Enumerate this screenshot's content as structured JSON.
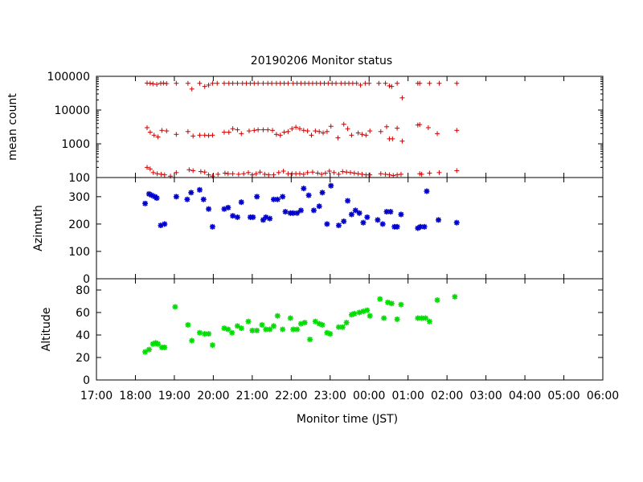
{
  "chart_data": {
    "title": "20190206 Monitor status",
    "xlabel": "Monitor time (JST)",
    "x_tick_labels": [
      "17:00",
      "18:00",
      "19:00",
      "20:00",
      "21:00",
      "22:00",
      "23:00",
      "00:00",
      "01:00",
      "02:00",
      "03:00",
      "04:00",
      "05:00",
      "06:00"
    ],
    "x_range_hours": [
      17,
      30
    ],
    "panels": [
      {
        "name": "mean-count",
        "type": "scatter",
        "ylabel": "mean count",
        "yscale": "log",
        "ylim": [
          100,
          100000
        ],
        "y_tick_labels": [
          "100",
          "1000",
          "10000",
          "100000"
        ],
        "y_tick_values": [
          100,
          1000,
          10000,
          100000
        ],
        "color": "#cc0000",
        "marker": "plus",
        "series": [
          {
            "x": [
              18.3,
              18.38,
              18.45,
              18.55,
              18.65,
              18.72,
              18.8,
              19.05,
              19.35,
              19.45,
              19.65,
              19.78,
              19.88,
              19.98,
              20.1,
              20.28,
              20.4,
              20.5,
              20.62,
              20.75,
              20.85,
              20.95,
              21.05,
              21.15,
              21.28,
              21.4,
              21.5,
              21.62,
              21.72,
              21.82,
              21.92,
              22.05,
              22.15,
              22.25,
              22.35,
              22.45,
              22.55,
              22.65,
              22.75,
              22.85,
              22.95,
              23.05,
              23.15,
              23.28,
              23.38,
              23.48,
              23.58,
              23.68,
              23.78,
              23.9,
              24.0,
              24.25,
              24.42,
              24.52,
              24.58,
              24.72,
              24.85,
              25.25,
              25.3,
              25.55,
              25.8,
              26.25
            ],
            "y": [
              63000,
              62000,
              60000,
              58000,
              62000,
              63000,
              61000,
              62000,
              62000,
              42000,
              62000,
              50000,
              55000,
              62000,
              62000,
              62000,
              62000,
              62000,
              62000,
              62000,
              62000,
              62000,
              62000,
              62000,
              62000,
              62000,
              62000,
              62000,
              62000,
              62000,
              62000,
              62000,
              62000,
              62000,
              62000,
              62000,
              62000,
              62000,
              62000,
              62000,
              62000,
              62000,
              62000,
              62000,
              62000,
              62000,
              62000,
              62000,
              55000,
              62000,
              62000,
              62000,
              62000,
              52000,
              50000,
              62000,
              23000,
              62000,
              62000,
              62000,
              62000,
              62000
            ]
          },
          {
            "x": [
              18.3,
              18.38,
              18.48,
              18.58,
              18.68,
              18.8,
              19.05,
              19.35,
              19.48,
              19.65,
              19.78,
              19.88,
              19.98,
              20.28,
              20.4,
              20.5,
              20.62,
              20.72,
              20.92,
              21.05,
              21.15,
              21.28,
              21.4,
              21.52,
              21.62,
              21.72,
              21.82,
              21.92,
              22.02,
              22.12,
              22.22,
              22.32,
              22.42,
              22.52,
              22.62,
              22.72,
              22.82,
              22.92,
              23.02,
              23.2,
              23.35,
              23.45,
              23.55,
              23.72,
              23.82,
              23.92,
              24.02,
              24.3,
              24.45,
              24.52,
              24.6,
              24.72,
              24.85,
              25.25,
              25.3,
              25.52,
              25.75,
              26.25
            ],
            "y": [
              3000,
              2200,
              1800,
              1600,
              2500,
              2400,
              1900,
              2300,
              1700,
              1800,
              1800,
              1750,
              1800,
              2200,
              2200,
              2800,
              2600,
              2000,
              2400,
              2500,
              2600,
              2600,
              2600,
              2500,
              1900,
              1800,
              2200,
              2300,
              2800,
              3100,
              2800,
              2500,
              2400,
              1800,
              2400,
              2300,
              2100,
              2300,
              3300,
              1500,
              3800,
              2800,
              1800,
              2100,
              1900,
              1800,
              2400,
              2300,
              3200,
              1400,
              1400,
              2900,
              1200,
              3600,
              3700,
              3000,
              2000,
              2500
            ]
          },
          {
            "x": [
              18.3,
              18.38,
              18.46,
              18.56,
              18.66,
              18.75,
              18.9,
              19.05,
              19.38,
              19.48,
              19.68,
              19.78,
              19.88,
              19.98,
              20.12,
              20.3,
              20.38,
              20.5,
              20.65,
              20.78,
              20.9,
              21.0,
              21.1,
              21.2,
              21.32,
              21.42,
              21.55,
              21.68,
              21.8,
              21.92,
              22.02,
              22.12,
              22.22,
              22.32,
              22.42,
              22.55,
              22.68,
              22.78,
              22.88,
              22.98,
              23.1,
              23.22,
              23.32,
              23.42,
              23.52,
              23.62,
              23.72,
              23.82,
              23.92,
              24.02,
              24.3,
              24.42,
              24.52,
              24.62,
              24.72,
              24.82,
              25.3,
              25.35,
              25.55,
              25.8,
              26.25
            ],
            "y": [
              200,
              180,
              140,
              130,
              125,
              120,
              110,
              140,
              170,
              160,
              150,
              145,
              120,
              110,
              125,
              135,
              130,
              130,
              125,
              130,
              140,
              120,
              130,
              145,
              125,
              120,
              120,
              140,
              155,
              130,
              130,
              130,
              130,
              125,
              140,
              145,
              135,
              125,
              135,
              155,
              140,
              125,
              150,
              145,
              140,
              135,
              130,
              125,
              120,
              120,
              130,
              125,
              120,
              115,
              120,
              125,
              130,
              125,
              135,
              140,
              160
            ]
          }
        ]
      },
      {
        "name": "azimuth",
        "type": "scatter",
        "ylabel": "Azimuth",
        "yscale": "linear",
        "ylim": [
          0,
          370
        ],
        "y_tick_labels": [
          "0",
          "100",
          "200",
          "300"
        ],
        "y_tick_values": [
          0,
          100,
          200,
          300
        ],
        "color": "#0000cc",
        "marker": "star",
        "series": [
          {
            "x": [
              18.25,
              18.35,
              18.42,
              18.5,
              18.55,
              18.65,
              18.75,
              19.05,
              19.33,
              19.43,
              19.65,
              19.75,
              19.88,
              19.98,
              20.28,
              20.38,
              20.5,
              20.62,
              20.72,
              20.95,
              21.02,
              21.12,
              21.28,
              21.35,
              21.45,
              21.55,
              21.65,
              21.78,
              21.85,
              21.98,
              22.05,
              22.15,
              22.25,
              22.32,
              22.45,
              22.58,
              22.72,
              22.8,
              22.92,
              23.02,
              23.22,
              23.35,
              23.45,
              23.55,
              23.65,
              23.75,
              23.85,
              23.95,
              24.22,
              24.35,
              24.45,
              24.55,
              24.65,
              24.72,
              24.82,
              25.25,
              25.32,
              25.42,
              25.48,
              25.78,
              26.25
            ],
            "y": [
              275,
              310,
              305,
              300,
              295,
              195,
              200,
              300,
              290,
              315,
              325,
              290,
              255,
              190,
              255,
              260,
              230,
              225,
              280,
              225,
              225,
              300,
              215,
              225,
              220,
              290,
              290,
              300,
              245,
              240,
              240,
              240,
              250,
              330,
              305,
              250,
              265,
              315,
              200,
              340,
              195,
              210,
              285,
              235,
              250,
              240,
              205,
              225,
              215,
              200,
              245,
              245,
              190,
              190,
              235,
              185,
              190,
              190,
              320,
              215,
              205
            ]
          }
        ]
      },
      {
        "name": "altitude",
        "type": "scatter",
        "ylabel": "Altitude",
        "yscale": "linear",
        "ylim": [
          0,
          90
        ],
        "y_tick_labels": [
          "0",
          "20",
          "40",
          "60",
          "80"
        ],
        "y_tick_values": [
          0,
          20,
          40,
          60,
          80
        ],
        "color": "#00dd00",
        "marker": "star",
        "series": [
          {
            "x": [
              18.25,
              18.35,
              18.45,
              18.52,
              18.58,
              18.68,
              18.75,
              19.02,
              19.35,
              19.45,
              19.65,
              19.78,
              19.88,
              19.98,
              20.28,
              20.38,
              20.48,
              20.62,
              20.72,
              20.9,
              21.0,
              21.12,
              21.25,
              21.35,
              21.45,
              21.55,
              21.65,
              21.78,
              21.98,
              22.05,
              22.15,
              22.25,
              22.35,
              22.48,
              22.62,
              22.72,
              22.8,
              22.92,
              23.0,
              23.22,
              23.32,
              23.42,
              23.55,
              23.62,
              23.75,
              23.85,
              23.95,
              24.02,
              24.28,
              24.38,
              24.48,
              24.58,
              24.72,
              24.82,
              25.25,
              25.35,
              25.45,
              25.55,
              25.75,
              26.2
            ],
            "y": [
              25,
              27,
              32,
              33,
              32,
              29,
              29,
              65,
              49,
              35,
              42,
              41,
              41,
              31,
              46,
              45,
              42,
              48,
              46,
              52,
              44,
              44,
              49,
              45,
              45,
              48,
              57,
              45,
              55,
              45,
              45,
              50,
              51,
              36,
              52,
              50,
              49,
              42,
              41,
              47,
              47,
              51,
              58,
              59,
              60,
              61,
              62,
              57,
              72,
              55,
              69,
              68,
              54,
              67,
              55,
              55,
              55,
              52,
              71,
              74
            ]
          }
        ]
      }
    ]
  }
}
